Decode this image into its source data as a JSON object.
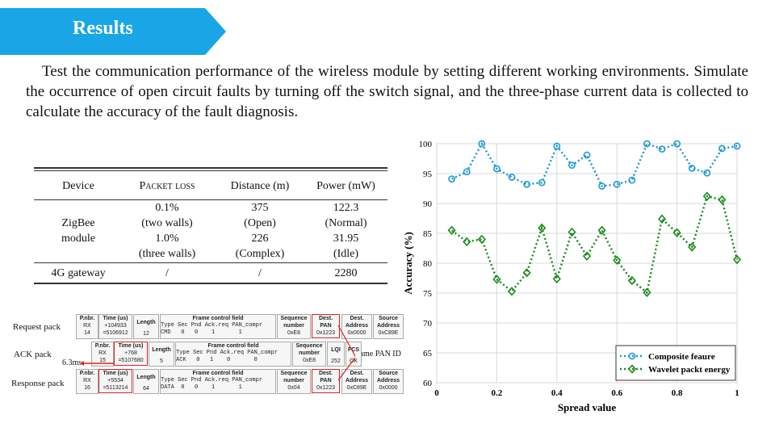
{
  "header": {
    "title": "Results"
  },
  "intro": "Test the communication performance of the wireless module by setting different working environments. Simulate the occurrence of open circuit faults by turning off the switch signal, and the three-phase current data is collected to calculate the accuracy of the fault diagnosis.",
  "table": {
    "headers": [
      "Device",
      "Packet loss",
      "Distance  (m)",
      "Power (mW)"
    ],
    "zigbee": {
      "device": [
        "ZigBee",
        "module"
      ],
      "loss": [
        "0.1%",
        "(two walls)",
        "1.0%",
        "(three walls)"
      ],
      "distance": [
        "375",
        "(Open)",
        "226",
        "(Complex)"
      ],
      "power": [
        "122.3",
        "(Normal)",
        "31.95",
        "(Idle)"
      ]
    },
    "gateway": {
      "device": "4G gateway",
      "loss": "/",
      "distance": "/",
      "power": "2280"
    }
  },
  "packets": {
    "labels": {
      "request": "Request pack",
      "ack": "ACK pack",
      "response": "Response pack",
      "delay": "6.3ms",
      "same_pan": "Same PAN ID"
    },
    "request": {
      "pnbr": [
        "P.nbr.",
        "RX",
        "14"
      ],
      "time": [
        "Time (us)",
        "+104933",
        "=5106912"
      ],
      "length": [
        "Length",
        "12"
      ],
      "fcf_title": "Frame control field",
      "fcf_head": "Type Sec Pnd Ack.req PAN_compr",
      "fcf_vals": "CMD   0   0    1       1",
      "seq": [
        "Sequence",
        "number",
        "0xE8"
      ],
      "pan": [
        "Dest.",
        "PAN",
        "0x1223"
      ],
      "addr": [
        "Dest.",
        "Address",
        "0x0000"
      ],
      "src": [
        "Source",
        "Address",
        "0xC89E"
      ]
    },
    "ack": {
      "pnbr": [
        "P.nbr.",
        "RX",
        "15"
      ],
      "time": [
        "Time (us)",
        "+768",
        "=5107680"
      ],
      "length": [
        "Length",
        "5"
      ],
      "fcf_title": "Frame control field",
      "fcf_head": "Type Sec Pnd Ack.req PAN_compr",
      "fcf_vals": "ACK   0   1    0       0",
      "seq": [
        "Sequence",
        "number",
        "0xE8"
      ],
      "lqi": [
        "LQI",
        "252"
      ],
      "fcs": [
        "FCS",
        "OK"
      ]
    },
    "response": {
      "pnbr": [
        "P.nbr.",
        "RX",
        "16"
      ],
      "time": [
        "Time (us)",
        "+5534",
        "=5113214"
      ],
      "length": [
        "Length",
        "64"
      ],
      "fcf_title": "Frame control field",
      "fcf_head": "Type Sec Pnd Ack.req PAN_compr",
      "fcf_vals": "DATA  0   0    1       1",
      "seq": [
        "Sequence",
        "number",
        "0x04"
      ],
      "pan": [
        "Dest.",
        "PAN",
        "0x1223"
      ],
      "addr": [
        "Dest.",
        "Address",
        "0xC89E"
      ],
      "src": [
        "Source",
        "Address",
        "0x0000"
      ]
    }
  },
  "colors": {
    "banner": "#1aa6e6",
    "series1": "#1f9ad6",
    "series2": "#1a8a1a",
    "highlight": "#d22222"
  },
  "chart_data": {
    "type": "line",
    "xlabel": "Spread value",
    "ylabel": "Accuracy (%)",
    "xlim": [
      0,
      1
    ],
    "ylim": [
      60,
      100
    ],
    "xticks": [
      "0",
      "0.2",
      "0.4",
      "0.6",
      "0.8",
      "1"
    ],
    "yticks": [
      "60",
      "65",
      "70",
      "75",
      "80",
      "85",
      "90",
      "95",
      "100"
    ],
    "grid": true,
    "legend_position": "bottom-right",
    "x": [
      0.05,
      0.1,
      0.15,
      0.2,
      0.25,
      0.3,
      0.35,
      0.4,
      0.45,
      0.5,
      0.55,
      0.6,
      0.65,
      0.7,
      0.75,
      0.8,
      0.85,
      0.9,
      0.95,
      1.0
    ],
    "series": [
      {
        "name": "Composite feaure",
        "marker": "circle",
        "values": [
          94.1,
          95.3,
          100,
          95.8,
          94.4,
          93.2,
          93.5,
          99.6,
          96.4,
          98.1,
          92.9,
          93.2,
          93.9,
          100,
          99.1,
          100,
          95.9,
          95.1,
          99.2,
          99.6
        ]
      },
      {
        "name": "Wavelet packt energy",
        "marker": "diamond",
        "values": [
          85.5,
          83.6,
          84.0,
          77.3,
          75.3,
          78.4,
          85.9,
          77.4,
          85.2,
          81.2,
          85.5,
          80.5,
          77.1,
          75.1,
          87.4,
          85.1,
          82.7,
          91.2,
          90.6,
          80.6
        ]
      }
    ]
  }
}
